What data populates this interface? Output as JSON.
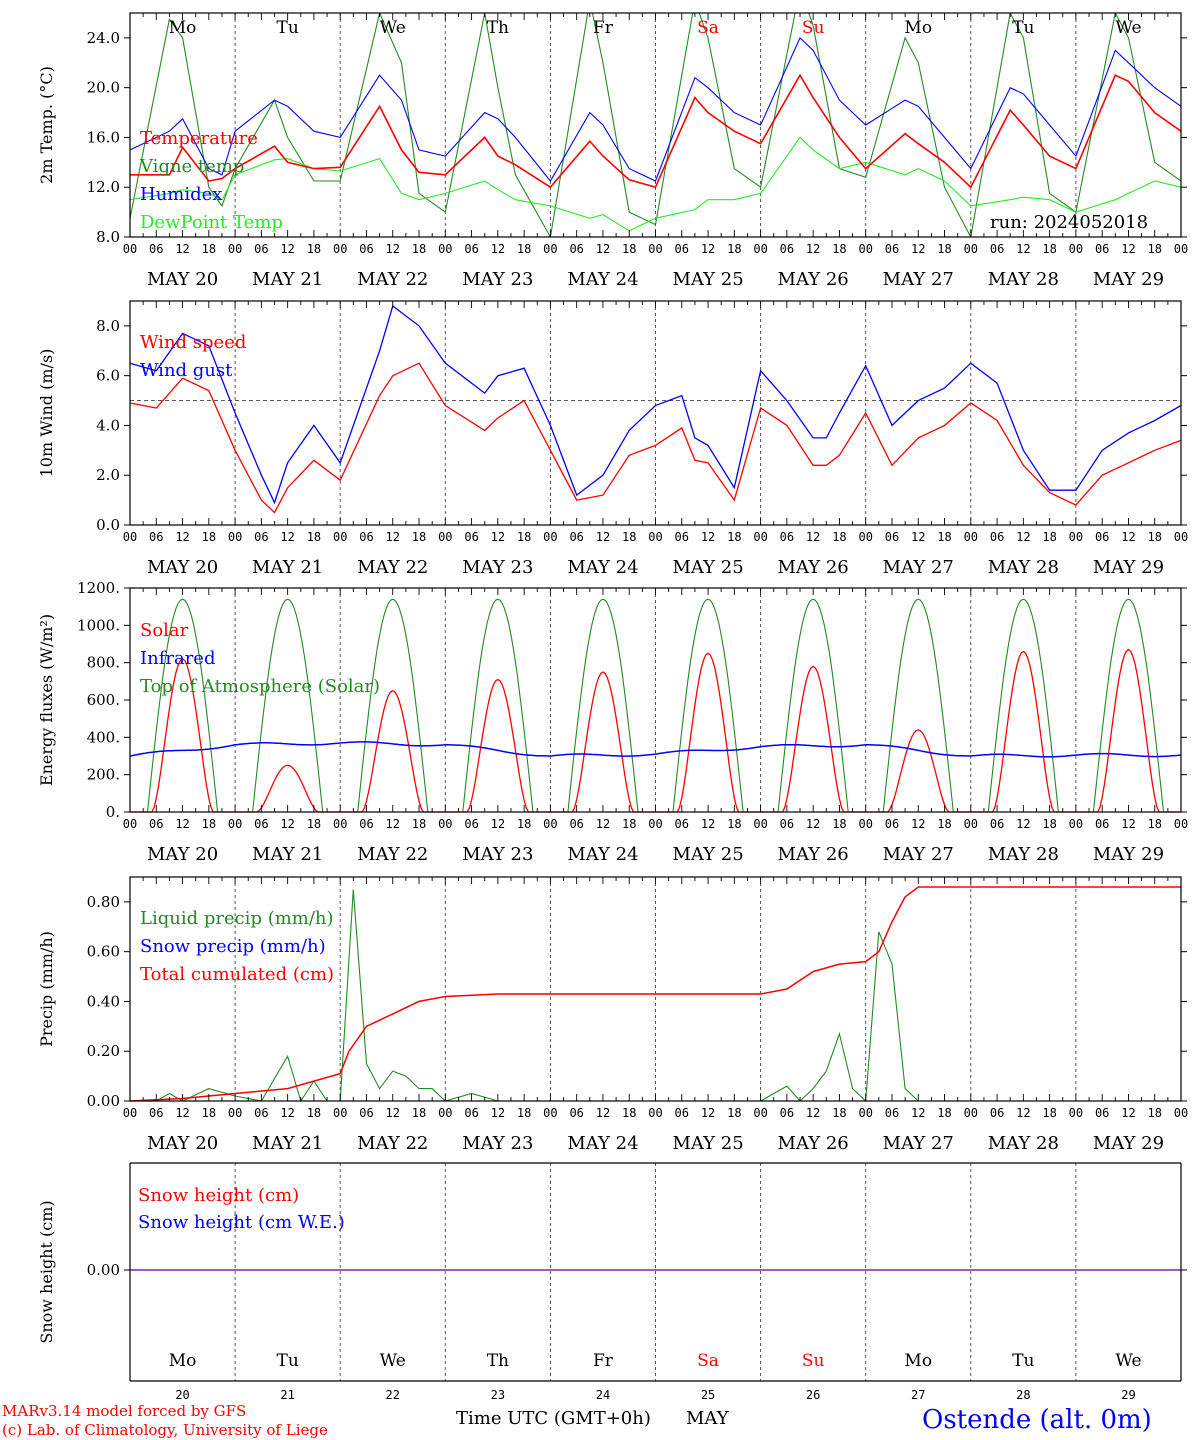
{
  "colors": {
    "red": "#ff0000",
    "green": "#228b22",
    "blue": "#0000ff",
    "lightgreen": "#22ee22",
    "purple": "#7a2aa0",
    "black": "#000000"
  },
  "days": {
    "weekdays": [
      "Mo",
      "Tu",
      "We",
      "Th",
      "Fr",
      "Sa",
      "Su",
      "Mo",
      "Tu",
      "We"
    ],
    "weekday_colors": [
      "black",
      "black",
      "black",
      "black",
      "black",
      "red",
      "red",
      "black",
      "black",
      "black"
    ],
    "dates": [
      "MAY 20",
      "MAY 21",
      "MAY 22",
      "MAY 23",
      "MAY 24",
      "MAY 25",
      "MAY 26",
      "MAY 27",
      "MAY 28",
      "MAY 29"
    ],
    "day_numbers": [
      "20",
      "21",
      "22",
      "23",
      "24",
      "25",
      "26",
      "27",
      "28",
      "29"
    ],
    "hour_ticks": [
      "00",
      "06",
      "12",
      "18"
    ],
    "final_tick": "00"
  },
  "run_label": "run: 2024052018",
  "footer": {
    "model": "MARv3.14 model forced by GFS",
    "credit": "(c) Lab. of Climatology, University of Liege",
    "axis_title": "Time UTC (GMT+0h)",
    "month": "MAY",
    "station": "Ostende (alt. 0m)"
  },
  "chart_data": [
    {
      "type": "line",
      "id": "temp",
      "ylabel": "2m Temp. (°C)",
      "ylim": [
        8,
        26
      ],
      "ytick_values": [
        8,
        12,
        16,
        20,
        24
      ],
      "ytick_labels": [
        "8.0",
        "12.0",
        "16.0",
        "20.0",
        "24.0"
      ],
      "x_hours": [
        0,
        9,
        12,
        18,
        21,
        24,
        33,
        36,
        42,
        48,
        57,
        62,
        66,
        72,
        81,
        84,
        88,
        96,
        105,
        108,
        114,
        120,
        129,
        132,
        138,
        144,
        153,
        156,
        162,
        168,
        177,
        180,
        186,
        192,
        201,
        204,
        210,
        216,
        225,
        228,
        234,
        240
      ],
      "series": [
        {
          "name": "Temperature",
          "color": "red",
          "values": [
            13.0,
            13.0,
            15.2,
            12.5,
            12.7,
            13.5,
            15.3,
            14.0,
            13.5,
            13.6,
            18.5,
            15.0,
            13.2,
            13.0,
            16.0,
            14.5,
            13.8,
            12.0,
            15.7,
            14.5,
            12.6,
            12.0,
            19.2,
            18.0,
            16.5,
            15.5,
            21.0,
            19.2,
            16.0,
            13.5,
            16.3,
            15.5,
            14.0,
            12.0,
            18.2,
            17.0,
            14.5,
            13.5,
            21.0,
            20.5,
            18.0,
            16.5
          ]
        },
        {
          "name": "Vigne temp",
          "color": "green",
          "values": [
            9.5,
            25.5,
            24.0,
            12.0,
            10.5,
            13.5,
            19.0,
            16.0,
            12.5,
            12.5,
            26.0,
            22.0,
            11.5,
            10.0,
            26.0,
            20.0,
            13.0,
            8.0,
            27.0,
            22.0,
            10.0,
            9.0,
            27.0,
            24.0,
            13.5,
            12.0,
            28.0,
            25.0,
            13.5,
            12.8,
            24.0,
            22.0,
            12.0,
            8.0,
            26.0,
            24.0,
            11.5,
            10.0,
            26.0,
            24.0,
            14.0,
            12.5
          ]
        },
        {
          "name": "Humidex",
          "color": "blue",
          "values": [
            15.0,
            16.5,
            17.5,
            13.5,
            13.0,
            16.5,
            19.0,
            18.5,
            16.5,
            16.0,
            21.0,
            19.0,
            15.0,
            14.5,
            18.0,
            17.5,
            16.0,
            12.5,
            18.0,
            17.0,
            13.5,
            12.5,
            20.8,
            20.0,
            18.0,
            17.0,
            24.0,
            23.0,
            19.0,
            17.0,
            19.0,
            18.5,
            16.0,
            13.5,
            20.0,
            19.5,
            17.0,
            14.5,
            23.0,
            22.0,
            20.0,
            18.5
          ]
        },
        {
          "name": "DewPoint Temp",
          "color": "lightgreen",
          "values": [
            11.0,
            11.5,
            11.8,
            11.5,
            11.0,
            13.0,
            14.2,
            14.3,
            13.5,
            13.3,
            14.3,
            11.5,
            11.0,
            11.5,
            12.5,
            11.8,
            11.0,
            10.5,
            9.5,
            9.8,
            8.5,
            9.5,
            10.2,
            11.0,
            11.0,
            11.5,
            16.0,
            15.0,
            13.5,
            14.0,
            13.0,
            13.5,
            12.5,
            10.5,
            11.0,
            11.2,
            11.0,
            10.0,
            11.0,
            11.5,
            12.5,
            12.0
          ]
        }
      ]
    },
    {
      "type": "line",
      "id": "wind",
      "ylabel": "10m Wind (m/s)",
      "ylim": [
        0,
        9
      ],
      "ytick_values": [
        0,
        2,
        4,
        6,
        8
      ],
      "ytick_labels": [
        "0.0",
        "2.0",
        "4.0",
        "6.0",
        "8.0"
      ],
      "reference_line": 5.0,
      "x_hours": [
        0,
        6,
        12,
        18,
        24,
        30,
        33,
        36,
        42,
        48,
        57,
        60,
        66,
        72,
        81,
        84,
        90,
        96,
        102,
        108,
        114,
        120,
        126,
        129,
        132,
        138,
        144,
        150,
        156,
        159,
        162,
        168,
        174,
        180,
        186,
        192,
        198,
        204,
        210,
        216,
        222,
        228,
        234,
        240
      ],
      "series": [
        {
          "name": "Wind speed",
          "color": "red",
          "values": [
            4.9,
            4.7,
            5.9,
            5.4,
            3.0,
            1.0,
            0.5,
            1.5,
            2.6,
            1.8,
            5.2,
            6.0,
            6.5,
            4.8,
            3.8,
            4.3,
            5.0,
            3.0,
            1.0,
            1.2,
            2.8,
            3.2,
            3.9,
            2.6,
            2.5,
            1.0,
            4.7,
            4.0,
            2.4,
            2.4,
            2.8,
            4.5,
            2.4,
            3.5,
            4.0,
            4.9,
            4.2,
            2.4,
            1.3,
            0.8,
            2.0,
            2.5,
            3.0,
            3.4
          ]
        },
        {
          "name": "Wind gust",
          "color": "blue",
          "values": [
            6.5,
            6.2,
            7.7,
            7.2,
            4.5,
            2.0,
            0.9,
            2.5,
            4.0,
            2.5,
            7.0,
            8.8,
            8.0,
            6.5,
            5.3,
            6.0,
            6.3,
            4.0,
            1.2,
            2.0,
            3.8,
            4.8,
            5.2,
            3.5,
            3.2,
            1.5,
            6.2,
            5.0,
            3.5,
            3.5,
            4.5,
            6.4,
            4.0,
            5.0,
            5.5,
            6.5,
            5.7,
            3.0,
            1.4,
            1.4,
            3.0,
            3.7,
            4.2,
            4.8
          ]
        }
      ]
    },
    {
      "type": "line",
      "id": "energy",
      "ylabel": "Energy fluxes (W/m²)",
      "ylim": [
        0,
        1200
      ],
      "ytick_values": [
        0,
        200,
        400,
        600,
        800,
        1000,
        1200
      ],
      "ytick_labels": [
        "0.",
        "200.",
        "400.",
        "600.",
        "800.",
        "1000.",
        "1200."
      ],
      "solar_peaks": [
        820,
        250,
        650,
        710,
        750,
        850,
        780,
        440,
        860,
        870
      ],
      "toa_peak": 1140,
      "infrared_daily": [
        300,
        360,
        370,
        360,
        300,
        310,
        350,
        360,
        300,
        305
      ],
      "series": [
        {
          "name": "Solar",
          "color": "red"
        },
        {
          "name": "Infrared",
          "color": "blue"
        },
        {
          "name": "Top of Atmosphere (Solar)",
          "color": "green"
        }
      ]
    },
    {
      "type": "line",
      "id": "precip",
      "ylabel": "Precip (mm/h)",
      "ylim": [
        0,
        0.9
      ],
      "ytick_values": [
        0,
        0.2,
        0.4,
        0.6,
        0.8
      ],
      "ytick_labels": [
        "0.00",
        "0.20",
        "0.40",
        "0.60",
        "0.80"
      ],
      "series": [
        {
          "name": "Liquid precip (mm/h)",
          "color": "green",
          "x_hours": [
            0,
            6,
            9,
            12,
            18,
            24,
            30,
            36,
            39,
            42,
            45,
            48,
            51,
            54,
            57,
            60,
            63,
            66,
            69,
            72,
            78,
            84,
            90,
            144,
            150,
            153,
            156,
            159,
            162,
            165,
            168,
            171,
            174,
            177,
            180,
            186,
            240
          ],
          "values": [
            0,
            0,
            0.03,
            0,
            0.05,
            0.02,
            0,
            0.18,
            0,
            0.08,
            0,
            0,
            0.85,
            0.15,
            0.05,
            0.12,
            0.1,
            0.05,
            0.05,
            0,
            0.03,
            0,
            0,
            0,
            0.06,
            0,
            0.05,
            0.12,
            0.27,
            0.05,
            0,
            0.68,
            0.55,
            0.05,
            0,
            0,
            0
          ]
        },
        {
          "name": "Snow precip (mm/h)",
          "color": "blue",
          "x_hours": [
            0,
            240
          ],
          "values": [
            0,
            0
          ]
        },
        {
          "name": "Total cumulated (cm)",
          "color": "red",
          "x_hours": [
            0,
            12,
            18,
            24,
            36,
            42,
            48,
            50,
            54,
            60,
            66,
            72,
            84,
            144,
            150,
            156,
            162,
            168,
            171,
            174,
            177,
            180,
            186,
            240
          ],
          "values": [
            0,
            0.01,
            0.02,
            0.03,
            0.05,
            0.08,
            0.11,
            0.2,
            0.3,
            0.35,
            0.4,
            0.42,
            0.43,
            0.43,
            0.45,
            0.52,
            0.55,
            0.56,
            0.6,
            0.72,
            0.82,
            0.86,
            0.86,
            0.86
          ]
        }
      ]
    },
    {
      "type": "line",
      "id": "snow",
      "ylabel": "Snow height (cm)",
      "ytick_values": [
        0
      ],
      "ytick_labels": [
        "0.00"
      ],
      "series": [
        {
          "name": "Snow height (cm)",
          "color": "red",
          "x_hours": [
            0,
            240
          ],
          "values": [
            0,
            0
          ]
        },
        {
          "name": "Snow height (cm W.E.)",
          "color": "blue",
          "x_hours": [
            0,
            240
          ],
          "values": [
            0,
            0
          ]
        }
      ]
    }
  ]
}
